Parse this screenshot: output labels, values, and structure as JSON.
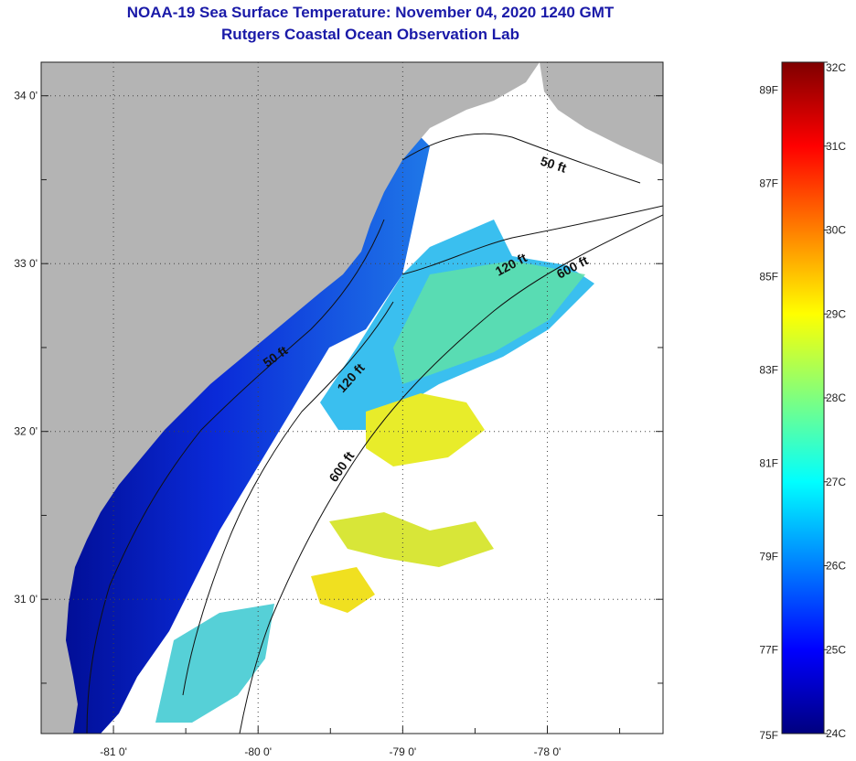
{
  "title": "NOAA-19 Sea Surface Temperature:  November 04, 2020 1240 GMT",
  "subtitle": "Rutgers Coastal Ocean Observation Lab",
  "colors": {
    "land": "#b4b4b4",
    "cloud": "#ffffff",
    "frame": "#222222"
  },
  "map": {
    "lon_range": [
      -81.5,
      -77.2
    ],
    "lat_range": [
      30.2,
      34.2
    ],
    "lat_ticks": [
      {
        "value": 31,
        "label": "31 0'"
      },
      {
        "value": 32,
        "label": "32 0'"
      },
      {
        "value": 33,
        "label": "33 0'"
      },
      {
        "value": 34,
        "label": "34 0'"
      }
    ],
    "lon_ticks": [
      {
        "value": -81,
        "label": "-81 0'"
      },
      {
        "value": -80,
        "label": "-80 0'"
      },
      {
        "value": -79,
        "label": "-79 0'"
      },
      {
        "value": -78,
        "label": "-78 0'"
      }
    ],
    "contour_labels": [
      {
        "text": "50 ft"
      },
      {
        "text": "50 ft"
      },
      {
        "text": "120 ft"
      },
      {
        "text": "120 ft"
      },
      {
        "text": "600 ft"
      },
      {
        "text": "600 ft"
      }
    ]
  },
  "colorbar": {
    "min_c": 24,
    "max_c": 32,
    "celsius_labels": [
      "32C",
      "31C",
      "30C",
      "29C",
      "28C",
      "27C",
      "26C",
      "25C",
      "24C"
    ],
    "fahrenheit_labels": [
      {
        "value": 89,
        "label": "89F"
      },
      {
        "value": 87,
        "label": "87F"
      },
      {
        "value": 85,
        "label": "85F"
      },
      {
        "value": 83,
        "label": "83F"
      },
      {
        "value": 81,
        "label": "81F"
      },
      {
        "value": 79,
        "label": "79F"
      },
      {
        "value": 77,
        "label": "77F"
      },
      {
        "value": 75,
        "label": "75F"
      }
    ]
  }
}
